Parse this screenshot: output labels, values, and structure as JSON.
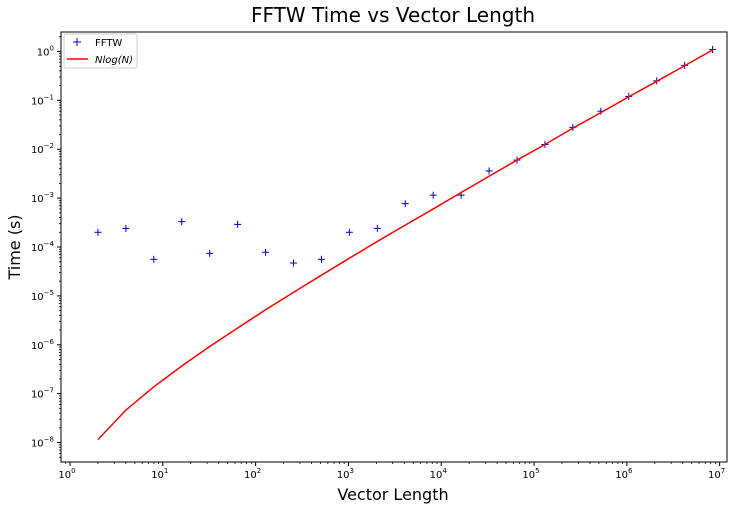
{
  "chart_data": {
    "type": "scatter",
    "title": "FFTW Time vs Vector Length",
    "xlabel": "Vector Length",
    "ylabel": "Time (s)",
    "xscale": "log",
    "yscale": "log",
    "xlim": [
      0.8,
      12000000
    ],
    "ylim": [
      4e-09,
      2.5
    ],
    "grid": false,
    "legend_position": "top-left",
    "x_ticks": [
      {
        "value": 1,
        "base": "10",
        "exp": "0"
      },
      {
        "value": 10,
        "base": "10",
        "exp": "1"
      },
      {
        "value": 100,
        "base": "10",
        "exp": "2"
      },
      {
        "value": 1000,
        "base": "10",
        "exp": "3"
      },
      {
        "value": 10000,
        "base": "10",
        "exp": "4"
      },
      {
        "value": 100000,
        "base": "10",
        "exp": "5"
      },
      {
        "value": 1000000,
        "base": "10",
        "exp": "6"
      },
      {
        "value": 10000000,
        "base": "10",
        "exp": "7"
      }
    ],
    "y_ticks": [
      {
        "value": 1e-08,
        "base": "10",
        "exp": "−8"
      },
      {
        "value": 1e-07,
        "base": "10",
        "exp": "−7"
      },
      {
        "value": 1e-06,
        "base": "10",
        "exp": "−6"
      },
      {
        "value": 1e-05,
        "base": "10",
        "exp": "−5"
      },
      {
        "value": 0.0001,
        "base": "10",
        "exp": "−4"
      },
      {
        "value": 0.001,
        "base": "10",
        "exp": "−3"
      },
      {
        "value": 0.01,
        "base": "10",
        "exp": "−2"
      },
      {
        "value": 0.1,
        "base": "10",
        "exp": "−1"
      },
      {
        "value": 1,
        "base": "10",
        "exp": "0"
      }
    ],
    "series": [
      {
        "name": "FFTW",
        "kind": "scatter",
        "marker": "+",
        "color": "#0000cc",
        "points": [
          {
            "x": 2,
            "y": 0.0002
          },
          {
            "x": 4,
            "y": 0.00024
          },
          {
            "x": 8,
            "y": 5.6e-05
          },
          {
            "x": 16,
            "y": 0.00033
          },
          {
            "x": 32,
            "y": 7.4e-05
          },
          {
            "x": 64,
            "y": 0.00029
          },
          {
            "x": 128,
            "y": 7.8e-05
          },
          {
            "x": 256,
            "y": 4.7e-05
          },
          {
            "x": 512,
            "y": 5.6e-05
          },
          {
            "x": 1024,
            "y": 0.0002
          },
          {
            "x": 2048,
            "y": 0.00024
          },
          {
            "x": 4096,
            "y": 0.00077
          },
          {
            "x": 8192,
            "y": 0.00115
          },
          {
            "x": 16384,
            "y": 0.00115
          },
          {
            "x": 32768,
            "y": 0.0036
          },
          {
            "x": 65536,
            "y": 0.006
          },
          {
            "x": 131072,
            "y": 0.0125
          },
          {
            "x": 262144,
            "y": 0.028
          },
          {
            "x": 524288,
            "y": 0.06
          },
          {
            "x": 1048576,
            "y": 0.12
          },
          {
            "x": 2097152,
            "y": 0.25
          },
          {
            "x": 4194304,
            "y": 0.52
          },
          {
            "x": 8388608,
            "y": 1.1
          }
        ]
      },
      {
        "name": "Nlog(N)",
        "legend_label": "Nlog(N)",
        "kind": "line",
        "color": "#ff0000",
        "points": [
          {
            "x": 2,
            "y": 1.15e-08
          },
          {
            "x": 4,
            "y": 4.6e-08
          },
          {
            "x": 8,
            "y": 1.38e-07
          },
          {
            "x": 16,
            "y": 3.68e-07
          },
          {
            "x": 32,
            "y": 9.2e-07
          },
          {
            "x": 64,
            "y": 2.2e-06
          },
          {
            "x": 128,
            "y": 5.2e-06
          },
          {
            "x": 256,
            "y": 1.18e-05
          },
          {
            "x": 512,
            "y": 2.65e-05
          },
          {
            "x": 1024,
            "y": 5.9e-05
          },
          {
            "x": 2048,
            "y": 0.00013
          },
          {
            "x": 4096,
            "y": 0.00028
          },
          {
            "x": 8192,
            "y": 0.0006
          },
          {
            "x": 16384,
            "y": 0.0013
          },
          {
            "x": 32768,
            "y": 0.0028
          },
          {
            "x": 65536,
            "y": 0.006
          },
          {
            "x": 131072,
            "y": 0.0125
          },
          {
            "x": 262144,
            "y": 0.027
          },
          {
            "x": 524288,
            "y": 0.056
          },
          {
            "x": 1048576,
            "y": 0.118
          },
          {
            "x": 2097152,
            "y": 0.245
          },
          {
            "x": 4194304,
            "y": 0.51
          },
          {
            "x": 8388608,
            "y": 1.07
          }
        ]
      }
    ]
  }
}
